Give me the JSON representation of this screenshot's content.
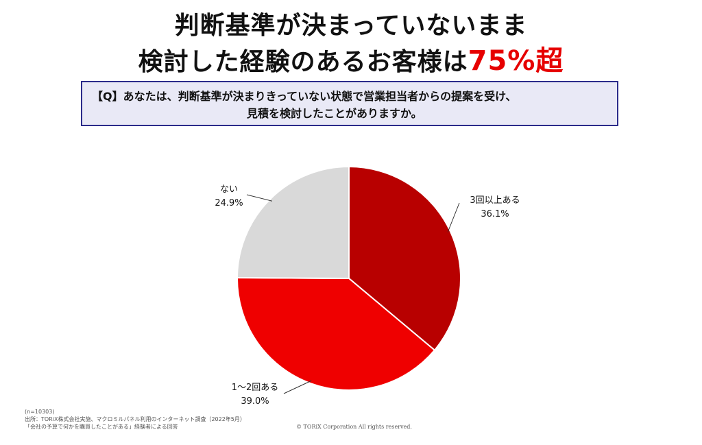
{
  "title": {
    "line1": "判断基準が決まっていないまま",
    "line2_main": "検討した経験のあるお客様は",
    "line2_accent": "75%超"
  },
  "question": {
    "line1": "【Q】あなたは、判断基準が決まりきっていない状態で営業担当者からの提案を受け、",
    "line2": "見積を検討したことがありますか。"
  },
  "chart_data": {
    "type": "pie",
    "start_angle_deg": 0,
    "direction": "clockwise",
    "slices": [
      {
        "label": "3回以上ある",
        "value": 36.1,
        "value_label": "36.1%",
        "color": "#b80000"
      },
      {
        "label": "1〜2回ある",
        "value": 39.0,
        "value_label": "39.0%",
        "color": "#ef0000"
      },
      {
        "label": "ない",
        "value": 24.9,
        "value_label": "24.9%",
        "color": "#d9d9d9"
      }
    ],
    "legend": "none",
    "labels": "outside with leader lines"
  },
  "footer": {
    "n": "(n=10303)",
    "source": "出所：TORiX株式会社実施、マクロミルパネル利用のインターネット調査（2022年5月）",
    "target": "「会社の予算で何かを購買したことがある」経験者による回答",
    "copyright": "© TORiX Corporation All rights reserved."
  }
}
